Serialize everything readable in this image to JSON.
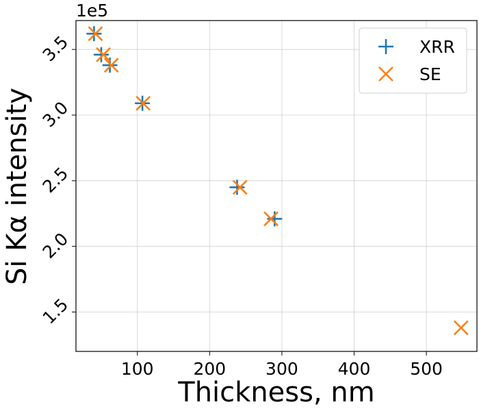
{
  "chart_data": {
    "type": "scatter",
    "title": "",
    "xlabel": "Thickness, nm",
    "ylabel": "Si Kα intensity",
    "y_multiplier_label": "1e5",
    "xlim": [
      15,
      570
    ],
    "ylim": [
      1.2,
      3.72
    ],
    "xticks": [
      100,
      200,
      300,
      400,
      500
    ],
    "xtick_labels": [
      "100",
      "200",
      "300",
      "400",
      "500"
    ],
    "yticks": [
      1.5,
      2.0,
      2.5,
      3.0,
      3.5
    ],
    "ytick_labels": [
      "1.5",
      "2.0",
      "2.5",
      "3.0",
      "3.5"
    ],
    "grid": true,
    "legend_position": "top-right",
    "series": [
      {
        "name": "XRR",
        "marker": "plus",
        "color": "#1f77b4",
        "x": [
          40,
          50,
          62,
          107,
          238,
          290
        ],
        "y": [
          3.62,
          3.46,
          3.38,
          3.09,
          2.45,
          2.21
        ]
      },
      {
        "name": "SE",
        "marker": "x",
        "color": "#ff7f0e",
        "x": [
          42,
          53,
          64,
          108,
          242,
          285,
          548
        ],
        "y": [
          3.62,
          3.46,
          3.38,
          3.09,
          2.45,
          2.21,
          1.38
        ]
      }
    ]
  }
}
